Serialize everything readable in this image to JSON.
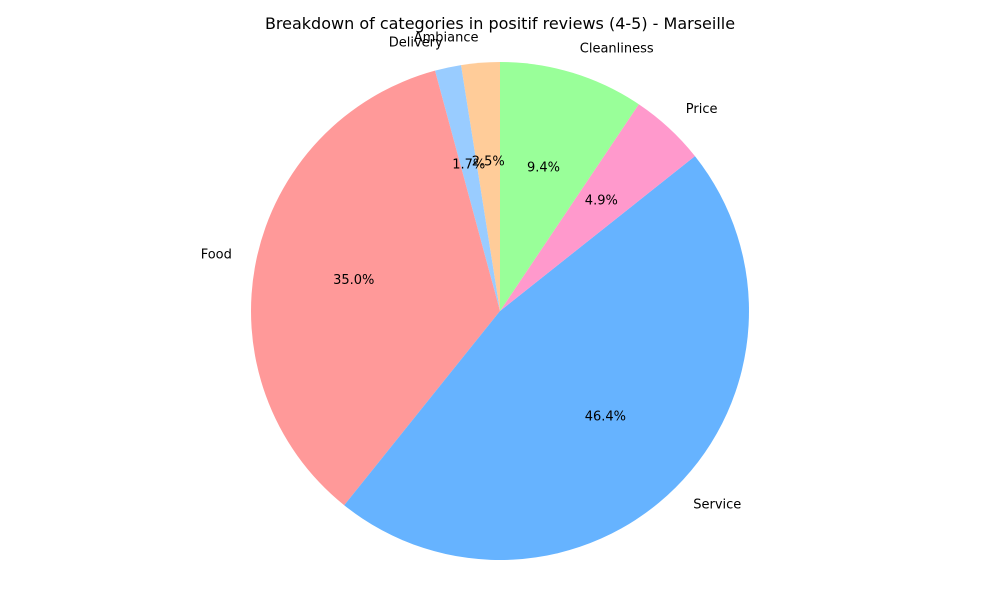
{
  "chart_data": {
    "type": "pie",
    "title": "Breakdown of categories in positif reviews (4-5) - Marseille",
    "start_angle_deg": 90,
    "direction": "counterclockwise",
    "slices": [
      {
        "label": "Ambiance",
        "value": 2.5,
        "pct_label": "2.5%",
        "color": "#ffcc99"
      },
      {
        "label": "Delivery",
        "value": 1.7,
        "pct_label": "1.7%",
        "color": "#99ccff"
      },
      {
        "label": "Food",
        "value": 35.0,
        "pct_label": "35.0%",
        "color": "#ff9999"
      },
      {
        "label": "Service",
        "value": 46.4,
        "pct_label": "46.4%",
        "color": "#66b3ff"
      },
      {
        "label": "Price",
        "value": 4.9,
        "pct_label": "4.9%",
        "color": "#ff99cc"
      },
      {
        "label": "Cleanliness",
        "value": 9.4,
        "pct_label": "9.4%",
        "color": "#99ff99"
      }
    ]
  }
}
